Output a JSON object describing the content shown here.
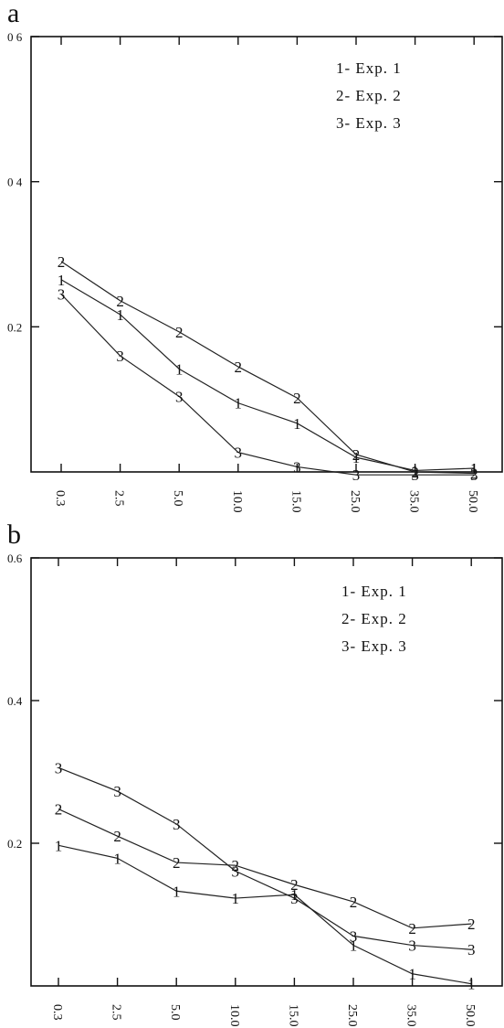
{
  "chart_data": [
    {
      "type": "line",
      "panel_label": "a",
      "categories": [
        "0.3",
        "2.5",
        "5.0",
        "10.0",
        "15.0",
        "25.0",
        "35.0",
        "50.0"
      ],
      "ylim": [
        0,
        0.6
      ],
      "yticks": [
        {
          "value": 0.2,
          "label": "0.2"
        },
        {
          "value": 0.4,
          "label": "0 4"
        },
        {
          "value": 0.6,
          "label": "0 6"
        }
      ],
      "legend": [
        "1- Exp. 1",
        "2- Exp. 2",
        "3- Exp. 3"
      ],
      "legend_position": "top-right",
      "series": [
        {
          "marker": "1",
          "values": [
            0.265,
            0.217,
            0.142,
            0.095,
            0.067,
            0.02,
            0.002,
            0.005
          ]
        },
        {
          "marker": "2",
          "values": [
            0.29,
            0.236,
            0.193,
            0.145,
            0.102,
            0.024,
            0.0,
            -0.002
          ]
        },
        {
          "marker": "3",
          "values": [
            0.245,
            0.16,
            0.104,
            0.027,
            0.007,
            -0.004,
            -0.004,
            -0.004
          ]
        }
      ]
    },
    {
      "type": "line",
      "panel_label": "b",
      "categories": [
        "0.3",
        "2.5",
        "5.0",
        "10.0",
        "15.0",
        "25.0",
        "35.0",
        "50.0"
      ],
      "ylim": [
        0,
        0.6
      ],
      "yticks": [
        {
          "value": 0.2,
          "label": "0.2"
        },
        {
          "value": 0.4,
          "label": "0.4"
        },
        {
          "value": 0.6,
          "label": "0.6"
        }
      ],
      "legend": [
        "1- Exp. 1",
        "2- Exp. 2",
        "3- Exp. 3"
      ],
      "legend_position": "top-right",
      "series": [
        {
          "marker": "1",
          "values": [
            0.197,
            0.179,
            0.133,
            0.123,
            0.128,
            0.057,
            0.017,
            0.003
          ]
        },
        {
          "marker": "2",
          "values": [
            0.248,
            0.21,
            0.173,
            0.169,
            0.142,
            0.118,
            0.081,
            0.087
          ]
        },
        {
          "marker": "3",
          "values": [
            0.306,
            0.273,
            0.227,
            0.161,
            0.123,
            0.07,
            0.057,
            0.051
          ]
        }
      ]
    }
  ]
}
